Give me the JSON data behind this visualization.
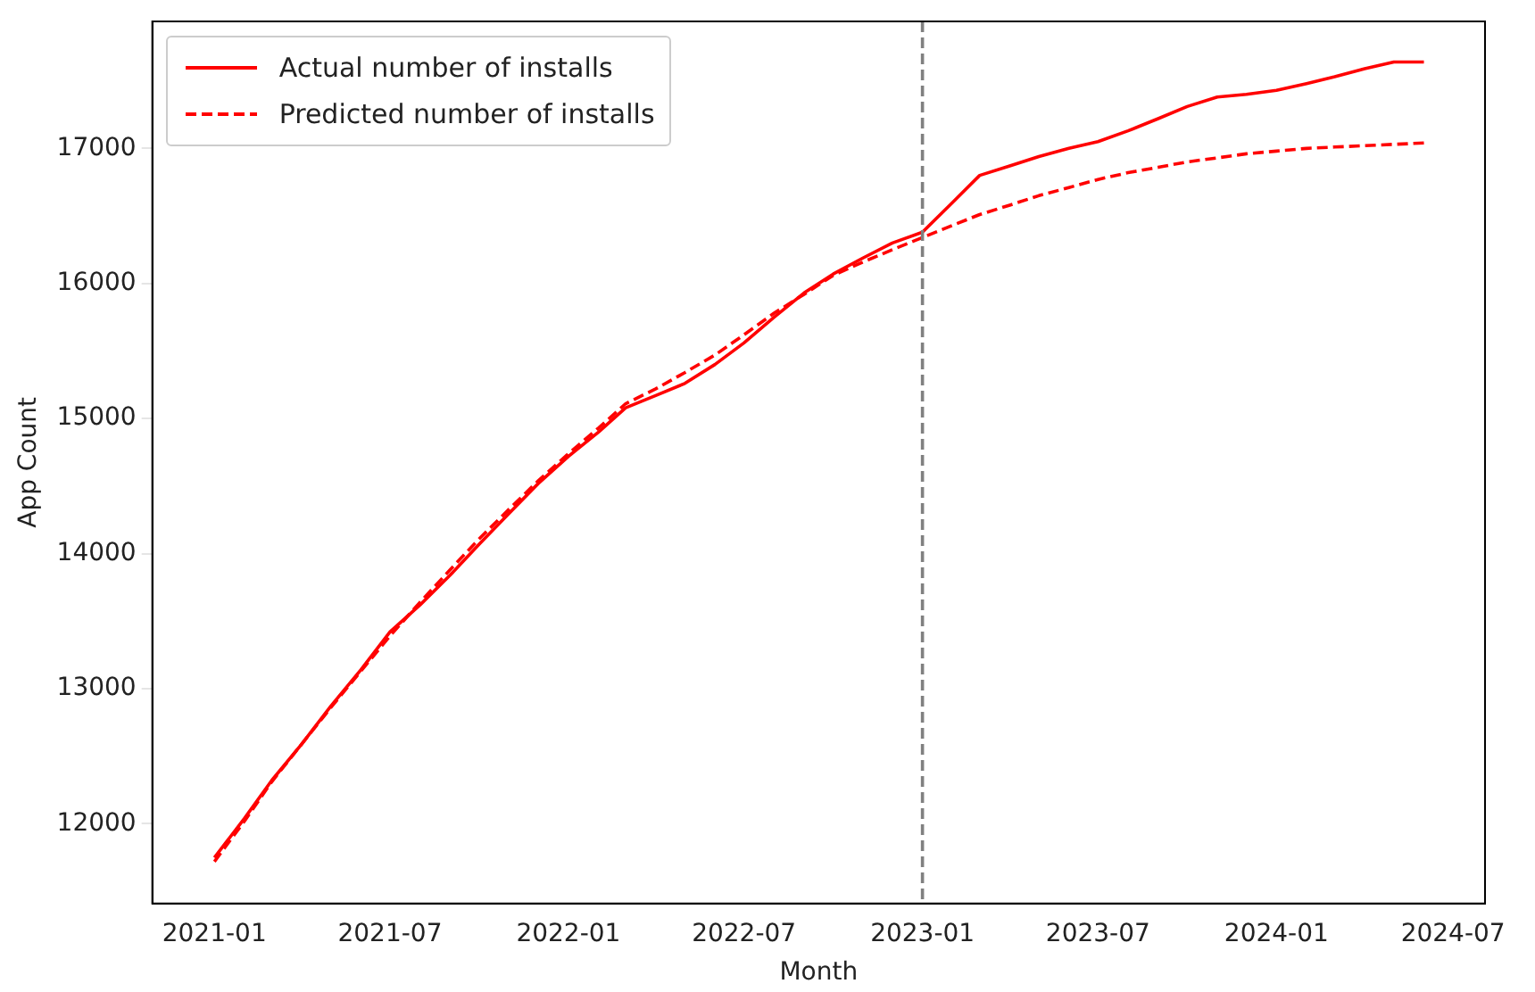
{
  "chart_data": {
    "type": "line",
    "xlabel": "Month",
    "ylabel": "App Count",
    "x": [
      "2021-01",
      "2021-02",
      "2021-03",
      "2021-04",
      "2021-05",
      "2021-06",
      "2021-07",
      "2021-08",
      "2021-09",
      "2021-10",
      "2021-11",
      "2021-12",
      "2022-01",
      "2022-02",
      "2022-03",
      "2022-04",
      "2022-05",
      "2022-06",
      "2022-07",
      "2022-08",
      "2022-09",
      "2022-10",
      "2022-11",
      "2022-12",
      "2023-01",
      "2023-02",
      "2023-03",
      "2023-04",
      "2023-05",
      "2023-06",
      "2023-07",
      "2023-08",
      "2023-09",
      "2023-10",
      "2023-11",
      "2023-12",
      "2024-01",
      "2024-02",
      "2024-03",
      "2024-04",
      "2024-05",
      "2024-06"
    ],
    "series": [
      {
        "name": "Actual number of installs",
        "color": "#ff0000",
        "line_style": "solid",
        "values": [
          11750,
          12040,
          12320,
          12590,
          12870,
          13140,
          13420,
          13620,
          13840,
          14070,
          14300,
          14520,
          14720,
          14900,
          15080,
          15170,
          15260,
          15400,
          15560,
          15750,
          15930,
          16070,
          16190,
          16300,
          16380,
          16600,
          16800,
          16870,
          16940,
          17000,
          17050,
          17130,
          17220,
          17310,
          17380,
          17400,
          17430,
          17480,
          17530,
          17590,
          17640,
          17640
        ]
      },
      {
        "name": "Predicted number of installs",
        "color": "#ff0000",
        "line_style": "dashed",
        "values": [
          11720,
          12020,
          12310,
          12590,
          12860,
          13130,
          13390,
          13640,
          13880,
          14110,
          14330,
          14540,
          14740,
          14930,
          15110,
          15220,
          15340,
          15470,
          15620,
          15780,
          15920,
          16060,
          16160,
          16250,
          16340,
          16430,
          16510,
          16580,
          16650,
          16710,
          16770,
          16820,
          16860,
          16900,
          16930,
          16960,
          16980,
          17000,
          17010,
          17020,
          17030,
          17040
        ]
      }
    ],
    "xlim": [
      "2020-10-29",
      "2024-08-03"
    ],
    "xticks": [
      "2021-01",
      "2021-07",
      "2022-01",
      "2022-07",
      "2023-01",
      "2023-07",
      "2024-01",
      "2024-07"
    ],
    "ylim": [
      11410,
      17940
    ],
    "yticks": [
      12000,
      13000,
      14000,
      15000,
      16000,
      17000
    ],
    "ref_lines": [
      {
        "axis": "x",
        "value": "2023-01",
        "color": "#808080",
        "line_style": "dashed"
      }
    ],
    "legend": "top left",
    "grid": false,
    "marker": "none"
  }
}
